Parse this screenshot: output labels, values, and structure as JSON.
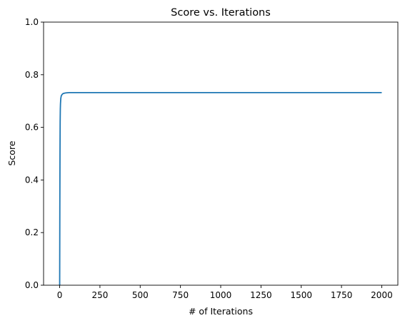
{
  "chart_data": {
    "type": "line",
    "title": "Score vs. Iterations",
    "xlabel": "# of Iterations",
    "ylabel": "Score",
    "xlim": [
      -100,
      2100
    ],
    "ylim": [
      0.0,
      1.0
    ],
    "xticks": [
      0,
      250,
      500,
      750,
      1000,
      1250,
      1500,
      1750,
      2000
    ],
    "yticks": [
      "0.0",
      "0.2",
      "0.4",
      "0.6",
      "0.8",
      "1.0"
    ],
    "grid": false,
    "line_color": "#1f77b4",
    "series": [
      {
        "x": [
          0,
          1,
          2,
          3,
          4,
          5,
          7,
          10,
          15,
          20,
          30,
          40,
          60,
          100,
          200,
          500,
          1000,
          1500,
          2000
        ],
        "y": [
          0.0,
          0.3,
          0.5,
          0.62,
          0.67,
          0.69,
          0.71,
          0.72,
          0.725,
          0.728,
          0.73,
          0.731,
          0.732,
          0.732,
          0.732,
          0.732,
          0.732,
          0.732,
          0.732
        ]
      }
    ]
  }
}
